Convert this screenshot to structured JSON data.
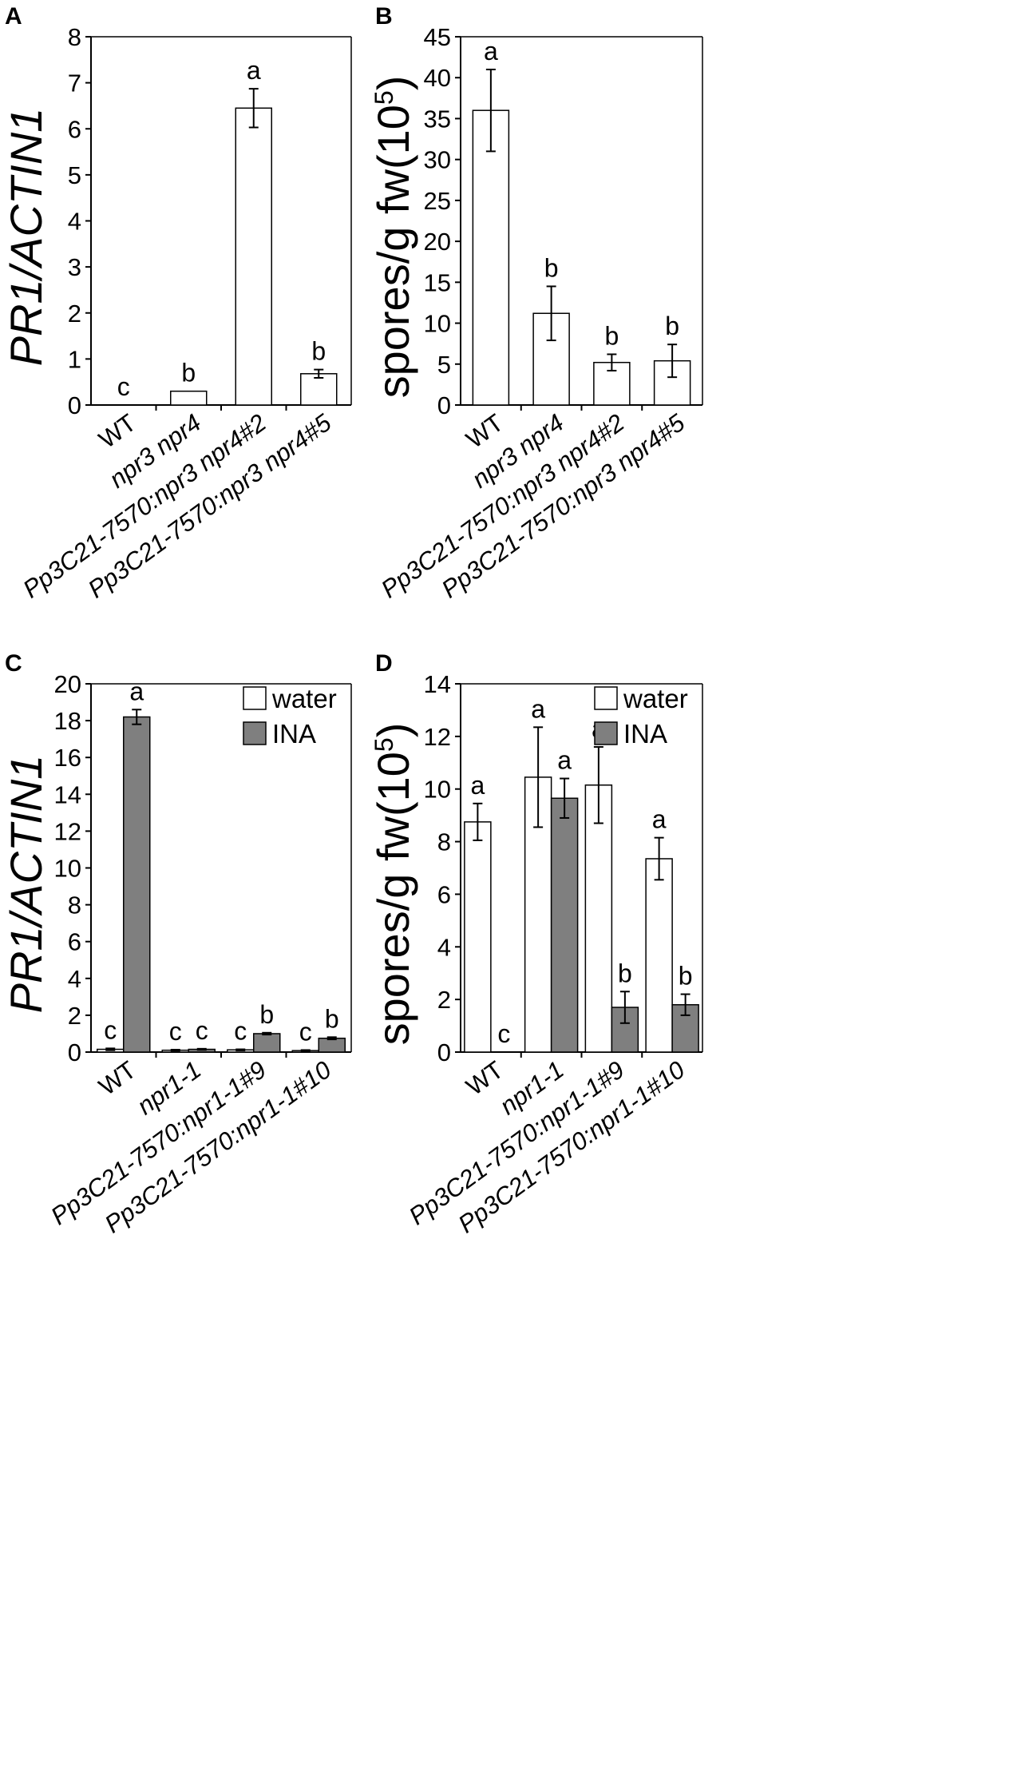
{
  "chart_data": [
    {
      "panel": "A",
      "type": "bar",
      "ylabel": "PR1/ACTIN1",
      "ylim": [
        0,
        8
      ],
      "yticks": [
        0,
        1,
        2,
        3,
        4,
        5,
        6,
        7,
        8
      ],
      "categories": [
        {
          "parts": [
            {
              "text": "WT",
              "italic": false
            }
          ]
        },
        {
          "parts": [
            {
              "text": "npr3 npr4",
              "italic": true
            }
          ]
        },
        {
          "parts": [
            {
              "text": "Pp3C21-7570:npr3 npr4#2",
              "italic": true
            }
          ]
        },
        {
          "parts": [
            {
              "text": "Pp3C21-7570:npr3 npr4#5",
              "italic": true
            }
          ]
        }
      ],
      "series": [
        {
          "name": "",
          "color": "#ffffff",
          "values": [
            0,
            0.3,
            6.45,
            0.68
          ],
          "errors": [
            0,
            0,
            0.42,
            0.09
          ],
          "letters": [
            "c",
            "b",
            "a",
            "b"
          ]
        }
      ]
    },
    {
      "panel": "B",
      "type": "bar",
      "ylabel": "spores/g fw(10",
      "ylabel_sup": "5",
      "ylabel_close": ")",
      "ylim": [
        0,
        45
      ],
      "yticks": [
        0,
        5,
        10,
        15,
        20,
        25,
        30,
        35,
        40,
        45
      ],
      "categories": [
        {
          "parts": [
            {
              "text": "WT",
              "italic": false
            }
          ]
        },
        {
          "parts": [
            {
              "text": "npr3 npr4",
              "italic": true
            }
          ]
        },
        {
          "parts": [
            {
              "text": "Pp3C21-7570:npr3 npr4#2",
              "italic": true
            }
          ]
        },
        {
          "parts": [
            {
              "text": "Pp3C21-7570:npr3 npr4#5",
              "italic": true
            }
          ]
        }
      ],
      "series": [
        {
          "name": "",
          "color": "#ffffff",
          "values": [
            36,
            11.2,
            5.2,
            5.4
          ],
          "errors": [
            5,
            3.3,
            1.0,
            2.0
          ],
          "letters": [
            "a",
            "b",
            "b",
            "b"
          ]
        }
      ]
    },
    {
      "panel": "C",
      "type": "bar",
      "ylabel": "PR1/ACTIN1",
      "ylim": [
        0,
        20
      ],
      "yticks": [
        0,
        2,
        4,
        6,
        8,
        10,
        12,
        14,
        16,
        18,
        20
      ],
      "legend": [
        "water",
        "INA"
      ],
      "categories": [
        {
          "parts": [
            {
              "text": "WT",
              "italic": false
            }
          ]
        },
        {
          "parts": [
            {
              "text": "npr1-1",
              "italic": true
            }
          ]
        },
        {
          "parts": [
            {
              "text": "Pp3C21-7570:npr1-1#9",
              "italic": true
            }
          ]
        },
        {
          "parts": [
            {
              "text": "Pp3C21-7570:npr1-1#10",
              "italic": true
            }
          ]
        }
      ],
      "series": [
        {
          "name": "water",
          "color": "#ffffff",
          "values": [
            0.15,
            0.1,
            0.12,
            0.08
          ],
          "errors": [
            0.05,
            0.03,
            0.03,
            0.03
          ],
          "letters": [
            "c",
            "c",
            "c",
            "c"
          ]
        },
        {
          "name": "INA",
          "color": "#7f7f7f",
          "values": [
            18.2,
            0.15,
            1.0,
            0.75
          ],
          "errors": [
            0.4,
            0.03,
            0.05,
            0.06
          ],
          "letters": [
            "a",
            "c",
            "b",
            "b"
          ]
        }
      ]
    },
    {
      "panel": "D",
      "type": "bar",
      "ylabel": "spores/g fw(10",
      "ylabel_sup": "5",
      "ylabel_close": ")",
      "ylim": [
        0,
        14
      ],
      "yticks": [
        0,
        2,
        4,
        6,
        8,
        10,
        12,
        14
      ],
      "legend": [
        "water",
        "INA"
      ],
      "categories": [
        {
          "parts": [
            {
              "text": "WT",
              "italic": false
            }
          ]
        },
        {
          "parts": [
            {
              "text": "npr1-1",
              "italic": true
            }
          ]
        },
        {
          "parts": [
            {
              "text": "Pp3C21-7570:npr1-1#9",
              "italic": true
            }
          ]
        },
        {
          "parts": [
            {
              "text": "Pp3C21-7570:npr1-1#10",
              "italic": true
            }
          ]
        }
      ],
      "series": [
        {
          "name": "water",
          "color": "#ffffff",
          "values": [
            8.75,
            10.45,
            10.15,
            7.35
          ],
          "errors": [
            0.7,
            1.9,
            1.45,
            0.8
          ],
          "letters": [
            "a",
            "a",
            "a",
            "a"
          ]
        },
        {
          "name": "INA",
          "color": "#7f7f7f",
          "values": [
            0,
            9.65,
            1.7,
            1.8
          ],
          "errors": [
            0,
            0.75,
            0.6,
            0.4
          ],
          "letters": [
            "c",
            "a",
            "b",
            "b"
          ]
        }
      ]
    }
  ]
}
